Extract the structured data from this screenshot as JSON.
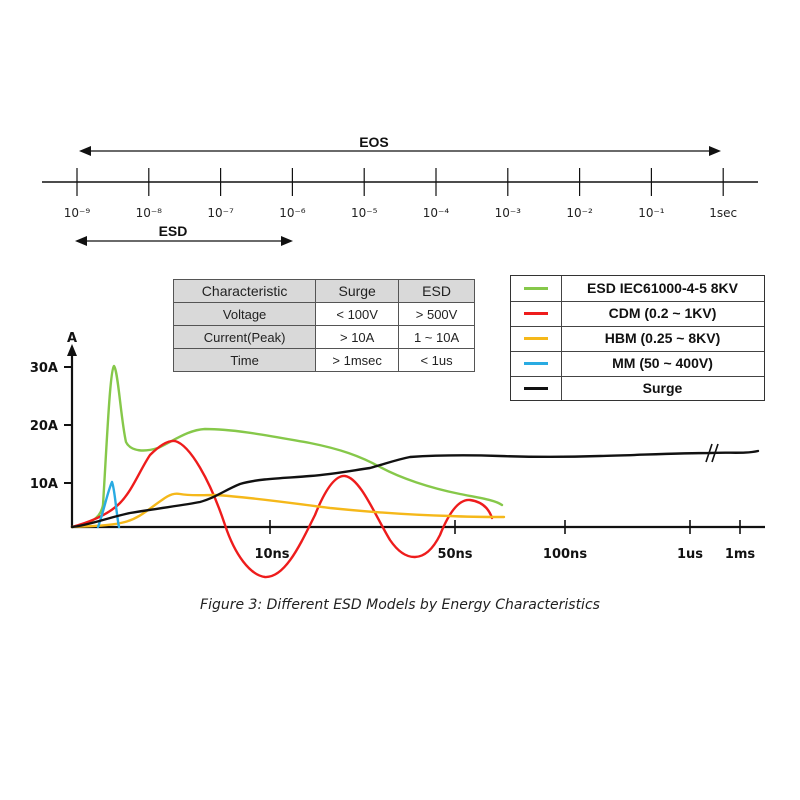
{
  "chart_data": [
    {
      "type": "timeline",
      "ticks": [
        "10⁻⁹",
        "10⁻⁸",
        "10⁻⁷",
        "10⁻⁶",
        "10⁻⁵",
        "10⁻⁴",
        "10⁻³",
        "10⁻²",
        "10⁻¹",
        "1sec"
      ],
      "ranges": [
        {
          "label": "EOS",
          "from": "10⁻⁹",
          "to": "1sec"
        },
        {
          "label": "ESD",
          "from": "10⁻⁹",
          "to": "10⁻⁶"
        }
      ]
    },
    {
      "type": "table",
      "columns": [
        "Characteristic",
        "Surge",
        "ESD"
      ],
      "rows": [
        [
          "Voltage",
          "< 100V",
          "> 500V"
        ],
        [
          "Current(Peak)",
          "> 10A",
          "1 ~ 10A"
        ],
        [
          "Time",
          "> 1msec",
          "< 1us"
        ]
      ]
    },
    {
      "type": "line",
      "ylabel": "A",
      "yticks": [
        "30A",
        "20A",
        "10A"
      ],
      "xticks": [
        "10ns",
        "50ns",
        "100ns",
        "1us",
        "1ms"
      ],
      "legend_position": "top-right",
      "series": [
        {
          "name": "ESD IEC61000-4-5 8KV",
          "color": "#86c84a"
        },
        {
          "name": "CDM (0.2 ~ 1KV)",
          "color": "#ee1c1c"
        },
        {
          "name": "HBM (0.25 ~ 8KV)",
          "color": "#f5b81a"
        },
        {
          "name": "MM (50 ~ 400V)",
          "color": "#29abe2"
        },
        {
          "name": "Surge",
          "color": "#111111"
        }
      ]
    }
  ],
  "caption": "Figure 3: Different ESD Models by Energy Characteristics"
}
